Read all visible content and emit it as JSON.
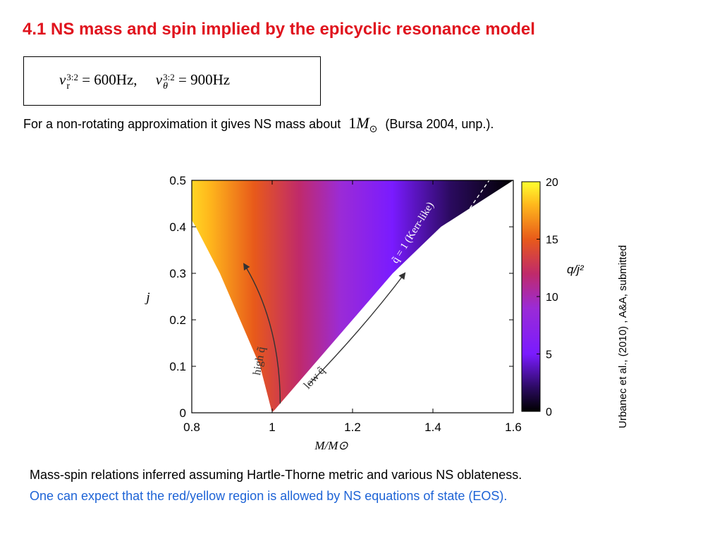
{
  "title": "4.1 NS mass and spin implied by the epicyclic resonance model",
  "formula": {
    "nu_r_label": "ν",
    "nu_r_sub": "r",
    "nu_r_sup": "3:2",
    "nu_r_value": "= 600Hz,",
    "nu_theta_label": "ν",
    "nu_theta_sub": "θ",
    "nu_theta_sup": "3:2",
    "nu_theta_value": "= 900Hz"
  },
  "intro": {
    "text_before": "For a non-rotating approximation it gives NS mass about",
    "mass_value": "1",
    "mass_symbol": "M",
    "mass_sub": "⊙",
    "text_after": "(Bursa 2004, unp.)."
  },
  "chart_data": {
    "type": "heatmap",
    "xlabel": "M/M⊙",
    "ylabel": "j",
    "colorbar_label": "q/j²",
    "xlim": [
      0.8,
      1.6
    ],
    "ylim": [
      0,
      0.5
    ],
    "x_ticks": [
      "0.8",
      "1",
      "1.2",
      "1.4",
      "1.6"
    ],
    "y_ticks": [
      "0",
      "0.1",
      "0.2",
      "0.3",
      "0.4",
      "0.5"
    ],
    "colorbar_range": [
      0,
      20
    ],
    "colorbar_ticks": [
      "0",
      "5",
      "10",
      "15",
      "20"
    ],
    "colors": [
      "#000000",
      "#2a0a5e",
      "#7a1bff",
      "#9b2bd6",
      "#c02a6a",
      "#e85a1a",
      "#ffb81c",
      "#ffff30"
    ],
    "region_left_boundary": [
      [
        1.0,
        0.0
      ],
      [
        0.97,
        0.1
      ],
      [
        0.92,
        0.2
      ],
      [
        0.87,
        0.3
      ],
      [
        0.81,
        0.4
      ],
      [
        0.74,
        0.5
      ]
    ],
    "region_right_boundary": [
      [
        1.0,
        0.0
      ],
      [
        1.1,
        0.1
      ],
      [
        1.2,
        0.2
      ],
      [
        1.3,
        0.3
      ],
      [
        1.42,
        0.4
      ],
      [
        1.6,
        0.5
      ]
    ],
    "kerr_line": [
      [
        1.0,
        0.0
      ],
      [
        1.13,
        0.1
      ],
      [
        1.26,
        0.2
      ],
      [
        1.36,
        0.3
      ],
      [
        1.46,
        0.4
      ],
      [
        1.54,
        0.5
      ]
    ],
    "annotations": {
      "kerr": "q̃ = 1 (Kerr-like)",
      "high": "high q̃",
      "low": "low q̃"
    }
  },
  "caption": {
    "line1": "Mass-spin relations inferred assuming Hartle-Thorne metric and various NS oblateness.",
    "line2": "One can expect that the red/yellow region is allowed by NS equations of state (EOS)."
  },
  "citation": "Urbanec et al., (2010) , A&A, submitted"
}
